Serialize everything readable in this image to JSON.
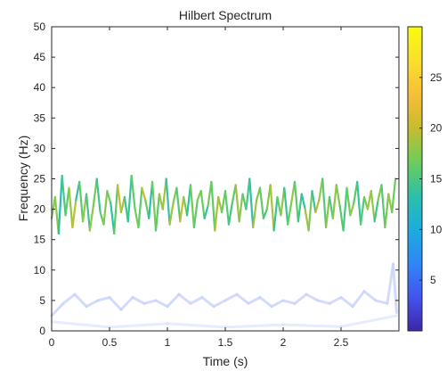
{
  "chart_data": {
    "type": "line",
    "title": "Hilbert Spectrum",
    "xlabel": "Time (s)",
    "ylabel": "Frequency (Hz)",
    "xlim": [
      0,
      3
    ],
    "ylim": [
      0,
      50
    ],
    "xticks": [
      0,
      0.5,
      1,
      1.5,
      2,
      2.5
    ],
    "xtick_labels": [
      "0",
      "0.5",
      "1",
      "1.5",
      "2",
      "2.5"
    ],
    "yticks": [
      0,
      5,
      10,
      15,
      20,
      25,
      30,
      35,
      40,
      45,
      50
    ],
    "ytick_labels": [
      "0",
      "5",
      "10",
      "15",
      "20",
      "25",
      "30",
      "35",
      "40",
      "45",
      "50"
    ],
    "grid": false,
    "colorbar": {
      "colormap": "parula",
      "clim": [
        0,
        30
      ],
      "ticks": [
        5,
        10,
        15,
        20,
        25
      ],
      "tick_labels": [
        "5",
        "10",
        "15",
        "20",
        "25"
      ],
      "colors": [
        "#3e26a8",
        "#4254ee",
        "#2e87f7",
        "#1cacdf",
        "#2cc0a9",
        "#6ccd5a",
        "#c6bc2f",
        "#f9bd39",
        "#f9e02a",
        "#f9fb0e"
      ]
    },
    "series": [
      {
        "x": [
          0,
          0.03,
          0.06,
          0.09,
          0.12,
          0.15,
          0.18,
          0.21,
          0.24,
          0.27,
          0.3,
          0.33,
          0.36,
          0.39,
          0.42,
          0.45,
          0.48,
          0.51,
          0.54,
          0.57,
          0.6,
          0.63,
          0.66,
          0.69,
          0.72,
          0.75,
          0.78,
          0.81,
          0.84,
          0.87,
          0.9,
          0.93,
          0.96,
          0.99,
          1.02,
          1.05,
          1.08,
          1.11,
          1.14,
          1.17,
          1.2,
          1.23,
          1.26,
          1.29,
          1.32,
          1.35,
          1.38,
          1.41,
          1.44,
          1.47,
          1.5,
          1.53,
          1.56,
          1.59,
          1.62,
          1.65,
          1.68,
          1.71,
          1.74,
          1.77,
          1.8,
          1.83,
          1.86,
          1.89,
          1.92,
          1.95,
          1.98,
          2.01,
          2.04,
          2.07,
          2.1,
          2.13,
          2.16,
          2.19,
          2.22,
          2.25,
          2.28,
          2.31,
          2.34,
          2.37,
          2.4,
          2.43,
          2.46,
          2.49,
          2.52,
          2.55,
          2.58,
          2.61,
          2.64,
          2.67,
          2.7,
          2.73,
          2.76,
          2.79,
          2.82,
          2.85,
          2.88,
          2.91,
          2.94,
          2.97
        ],
        "y": [
          18.5,
          22,
          16,
          25.5,
          19,
          23.5,
          17,
          21.5,
          24.5,
          18,
          22.5,
          16.5,
          20.5,
          25,
          19.5,
          17.5,
          23,
          21,
          16,
          24,
          19.5,
          22,
          18,
          25.5,
          20,
          17,
          23.5,
          21.5,
          18.5,
          24.5,
          16.5,
          22.5,
          20,
          25,
          17.5,
          21,
          23.5,
          18,
          22,
          19,
          24,
          17,
          21.5,
          23,
          18.5,
          20.5,
          24.5,
          16.5,
          22,
          19.5,
          23,
          17.5,
          21,
          24,
          18,
          22.5,
          20,
          25,
          17,
          21.5,
          23.5,
          18.5,
          20,
          24,
          16.5,
          22,
          19,
          23.5,
          17.5,
          21,
          24.5,
          18,
          22.5,
          20,
          16.5,
          23,
          19.5,
          21.5,
          25,
          17,
          22,
          18.5,
          24,
          20.5,
          16.5,
          23.5,
          19,
          21,
          24.5,
          17.5,
          22,
          20,
          23,
          18,
          21.5,
          24,
          17,
          22.5,
          19.5,
          25
        ],
        "amplitude": [
          12,
          22,
          14,
          11,
          19,
          13,
          24,
          15,
          12,
          20,
          16,
          13,
          23,
          11,
          18,
          14,
          21,
          12,
          15,
          17,
          24,
          13,
          16,
          12,
          20,
          14,
          18,
          22,
          11,
          15,
          19,
          13,
          25,
          12,
          16,
          21,
          14,
          17,
          23,
          12,
          15,
          19,
          13,
          22,
          11,
          16,
          18,
          14,
          24,
          13,
          20,
          12,
          17,
          15,
          22,
          13,
          19,
          11,
          16,
          21,
          14,
          18,
          12,
          23,
          15,
          13,
          20,
          16,
          12,
          22,
          14,
          18,
          11,
          17,
          21,
          13,
          15,
          24,
          12,
          19,
          16,
          14,
          22,
          13,
          18,
          12,
          21,
          15,
          17,
          11,
          20,
          14,
          23,
          13,
          16,
          19,
          12,
          22,
          15,
          18
        ]
      },
      {
        "x": [
          0,
          0.1,
          0.2,
          0.3,
          0.4,
          0.5,
          0.6,
          0.7,
          0.8,
          0.9,
          1,
          1.1,
          1.2,
          1.3,
          1.4,
          1.5,
          1.6,
          1.7,
          1.8,
          1.9,
          2,
          2.1,
          2.2,
          2.3,
          2.4,
          2.5,
          2.6,
          2.7,
          2.8,
          2.9,
          2.95,
          2.98
        ],
        "y": [
          2.5,
          4.5,
          6,
          4,
          5,
          5.5,
          3.5,
          5.5,
          4.5,
          5,
          4,
          6,
          4.5,
          5.5,
          4,
          5,
          6,
          4.5,
          5.5,
          4,
          5,
          4.5,
          6,
          5,
          4.5,
          5.5,
          4,
          6.5,
          5,
          4.5,
          11,
          3
        ],
        "amplitude": [
          3,
          3,
          3,
          3,
          3,
          3,
          3,
          3,
          3,
          3,
          3,
          3,
          3,
          3,
          3,
          3,
          3,
          3,
          3,
          3,
          3,
          3,
          3,
          3,
          3,
          3,
          3,
          3,
          3,
          3,
          3,
          3
        ]
      },
      {
        "x": [
          0,
          0.5,
          1,
          1.5,
          2,
          2.5,
          2.98
        ],
        "y": [
          1.5,
          0.6,
          1.2,
          0.6,
          1,
          0.7,
          2.5
        ],
        "amplitude": [
          1,
          1,
          1,
          1,
          1,
          1,
          1
        ]
      }
    ]
  }
}
